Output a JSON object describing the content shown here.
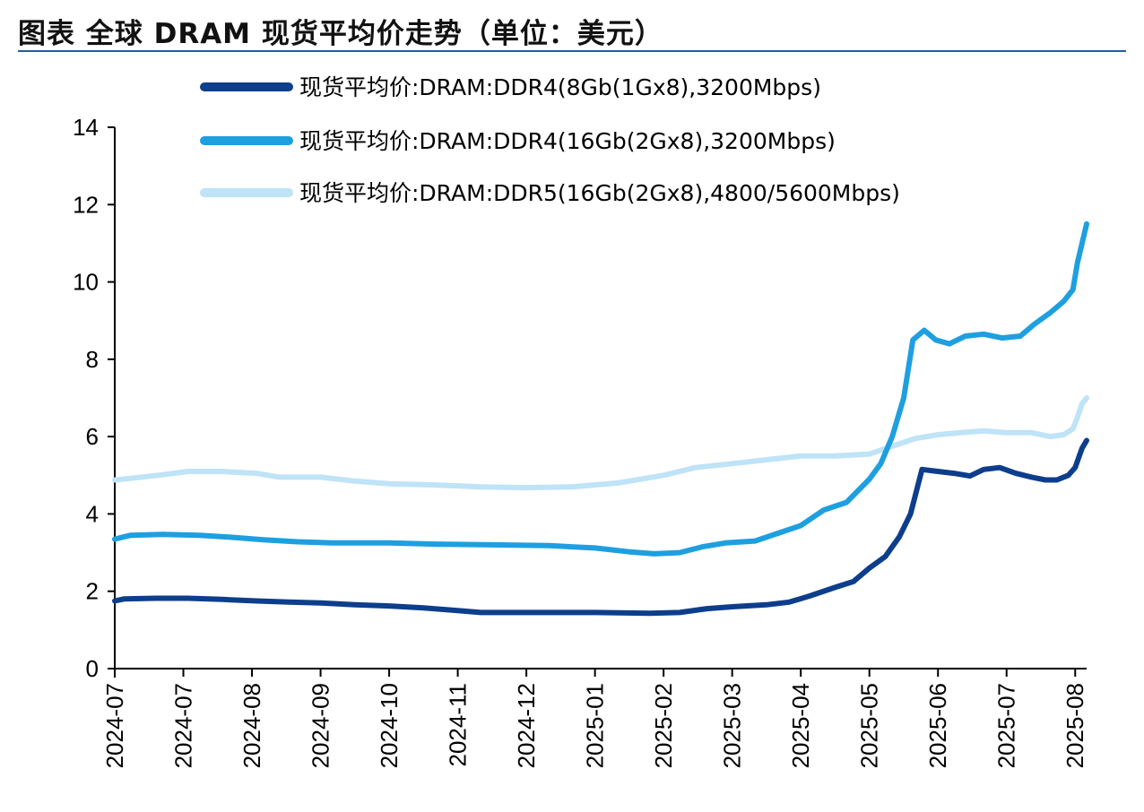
{
  "page": {
    "title": "图表  全球 DRAM 现货平均价走势（单位：美元）"
  },
  "chart_data": {
    "type": "line",
    "title": "图表  全球 DRAM 现货平均价走势（单位：美元）",
    "xlabel": "",
    "ylabel": "",
    "ylim": [
      0,
      14
    ],
    "yticks": [
      0,
      2,
      4,
      6,
      8,
      10,
      12,
      14
    ],
    "xlim": [
      "2024-07-01",
      "2025-08-30"
    ],
    "xtick_labels": [
      "2024-07",
      "2024-07",
      "2024-08",
      "2024-09",
      "2024-10",
      "2024-11",
      "2024-12",
      "2025-01",
      "2025-02",
      "2025-03",
      "2025-04",
      "2025-05",
      "2025-06",
      "2025-07",
      "2025-08"
    ],
    "xtick_dates": [
      "2024-07-01",
      "2024-07-31",
      "2024-08-30",
      "2024-09-29",
      "2024-10-29",
      "2024-11-28",
      "2024-12-28",
      "2025-01-27",
      "2025-02-26",
      "2025-03-28",
      "2025-04-27",
      "2025-05-27",
      "2025-06-26",
      "2025-07-26",
      "2025-08-25"
    ],
    "grid": false,
    "legend_position": "top-left",
    "series": [
      {
        "name": "现货平均价:DRAM:DDR4(8Gb(1Gx8),3200Mbps)",
        "color": "#0d3e8c",
        "points": [
          [
            "2024-07-01",
            1.75
          ],
          [
            "2024-07-05",
            1.8
          ],
          [
            "2024-07-19",
            1.82
          ],
          [
            "2024-08-02",
            1.82
          ],
          [
            "2024-08-17",
            1.79
          ],
          [
            "2024-09-01",
            1.75
          ],
          [
            "2024-09-15",
            1.72
          ],
          [
            "2024-09-29",
            1.7
          ],
          [
            "2024-10-14",
            1.65
          ],
          [
            "2024-10-29",
            1.62
          ],
          [
            "2024-11-13",
            1.57
          ],
          [
            "2024-11-28",
            1.5
          ],
          [
            "2024-12-08",
            1.45
          ],
          [
            "2024-12-28",
            1.45
          ],
          [
            "2025-01-27",
            1.45
          ],
          [
            "2025-02-20",
            1.43
          ],
          [
            "2025-03-05",
            1.45
          ],
          [
            "2025-03-17",
            1.55
          ],
          [
            "2025-03-28",
            1.6
          ],
          [
            "2025-04-12",
            1.65
          ],
          [
            "2025-04-22",
            1.72
          ],
          [
            "2025-05-01",
            1.88
          ],
          [
            "2025-05-12",
            2.1
          ],
          [
            "2025-05-20",
            2.25
          ],
          [
            "2025-05-27",
            2.6
          ],
          [
            "2025-06-03",
            2.9
          ],
          [
            "2025-06-09",
            3.4
          ],
          [
            "2025-06-14",
            4.0
          ],
          [
            "2025-06-19",
            5.15
          ],
          [
            "2025-06-26",
            5.1
          ],
          [
            "2025-07-03",
            5.05
          ],
          [
            "2025-07-10",
            4.98
          ],
          [
            "2025-07-16",
            5.15
          ],
          [
            "2025-07-23",
            5.2
          ],
          [
            "2025-07-30",
            5.05
          ],
          [
            "2025-08-06",
            4.95
          ],
          [
            "2025-08-12",
            4.88
          ],
          [
            "2025-08-17",
            4.88
          ],
          [
            "2025-08-22",
            5.0
          ],
          [
            "2025-08-25",
            5.2
          ],
          [
            "2025-08-28",
            5.7
          ],
          [
            "2025-08-30",
            5.9
          ]
        ]
      },
      {
        "name": "现货平均价:DRAM:DDR4(16Gb(2Gx8),3200Mbps)",
        "color": "#1e9fe0",
        "points": [
          [
            "2024-07-01",
            3.35
          ],
          [
            "2024-07-08",
            3.45
          ],
          [
            "2024-07-22",
            3.47
          ],
          [
            "2024-08-07",
            3.45
          ],
          [
            "2024-08-20",
            3.4
          ],
          [
            "2024-09-04",
            3.33
          ],
          [
            "2024-09-19",
            3.28
          ],
          [
            "2024-10-04",
            3.25
          ],
          [
            "2024-10-29",
            3.25
          ],
          [
            "2024-11-18",
            3.22
          ],
          [
            "2024-12-13",
            3.2
          ],
          [
            "2025-01-07",
            3.18
          ],
          [
            "2025-01-27",
            3.12
          ],
          [
            "2025-02-11",
            3.02
          ],
          [
            "2025-02-22",
            2.97
          ],
          [
            "2025-03-05",
            3.0
          ],
          [
            "2025-03-15",
            3.15
          ],
          [
            "2025-03-25",
            3.25
          ],
          [
            "2025-04-07",
            3.3
          ],
          [
            "2025-04-17",
            3.5
          ],
          [
            "2025-04-27",
            3.7
          ],
          [
            "2025-05-07",
            4.1
          ],
          [
            "2025-05-17",
            4.3
          ],
          [
            "2025-05-27",
            4.9
          ],
          [
            "2025-06-01",
            5.3
          ],
          [
            "2025-06-06",
            6.0
          ],
          [
            "2025-06-11",
            7.0
          ],
          [
            "2025-06-15",
            8.5
          ],
          [
            "2025-06-20",
            8.75
          ],
          [
            "2025-06-25",
            8.5
          ],
          [
            "2025-07-01",
            8.4
          ],
          [
            "2025-07-08",
            8.6
          ],
          [
            "2025-07-16",
            8.65
          ],
          [
            "2025-07-24",
            8.55
          ],
          [
            "2025-08-01",
            8.6
          ],
          [
            "2025-08-07",
            8.9
          ],
          [
            "2025-08-14",
            9.2
          ],
          [
            "2025-08-20",
            9.5
          ],
          [
            "2025-08-24",
            9.8
          ],
          [
            "2025-08-26",
            10.5
          ],
          [
            "2025-08-28",
            11.0
          ],
          [
            "2025-08-30",
            11.5
          ]
        ]
      },
      {
        "name": "现货平均价:DRAM:DDR5(16Gb(2Gx8),4800/5600Mbps)",
        "color": "#bfe3f7",
        "points": [
          [
            "2024-07-01",
            4.88
          ],
          [
            "2024-07-08",
            4.92
          ],
          [
            "2024-07-20",
            5.0
          ],
          [
            "2024-08-02",
            5.1
          ],
          [
            "2024-08-17",
            5.1
          ],
          [
            "2024-09-01",
            5.05
          ],
          [
            "2024-09-11",
            4.95
          ],
          [
            "2024-09-29",
            4.95
          ],
          [
            "2024-10-14",
            4.85
          ],
          [
            "2024-10-29",
            4.78
          ],
          [
            "2024-11-18",
            4.75
          ],
          [
            "2024-12-08",
            4.7
          ],
          [
            "2024-12-28",
            4.68
          ],
          [
            "2025-01-17",
            4.7
          ],
          [
            "2025-02-06",
            4.8
          ],
          [
            "2025-02-26",
            5.0
          ],
          [
            "2025-03-12",
            5.2
          ],
          [
            "2025-03-28",
            5.3
          ],
          [
            "2025-04-12",
            5.4
          ],
          [
            "2025-04-27",
            5.5
          ],
          [
            "2025-05-12",
            5.5
          ],
          [
            "2025-05-27",
            5.55
          ],
          [
            "2025-06-06",
            5.75
          ],
          [
            "2025-06-16",
            5.95
          ],
          [
            "2025-06-26",
            6.05
          ],
          [
            "2025-07-06",
            6.1
          ],
          [
            "2025-07-16",
            6.15
          ],
          [
            "2025-07-26",
            6.1
          ],
          [
            "2025-08-06",
            6.1
          ],
          [
            "2025-08-14",
            6.0
          ],
          [
            "2025-08-20",
            6.05
          ],
          [
            "2025-08-24",
            6.2
          ],
          [
            "2025-08-26",
            6.5
          ],
          [
            "2025-08-28",
            6.85
          ],
          [
            "2025-08-30",
            7.0
          ]
        ]
      }
    ]
  }
}
